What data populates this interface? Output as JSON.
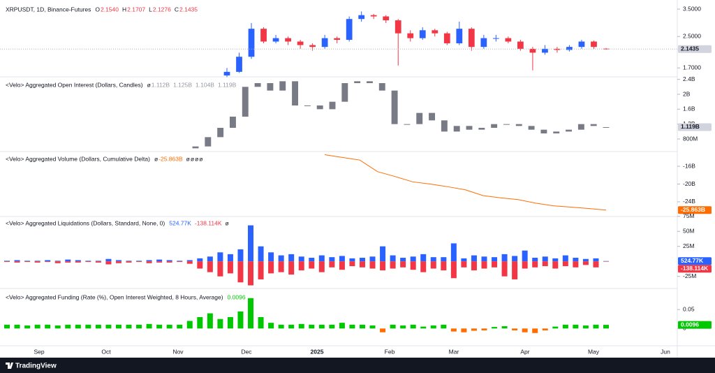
{
  "branding": "TradingView",
  "x_axis": {
    "labels": [
      "Sep",
      "Oct",
      "Nov",
      "Dec",
      "2025",
      "Feb",
      "Mar",
      "Apr",
      "May",
      "Jun"
    ]
  },
  "chart_data": [
    {
      "type": "candlestick",
      "legend": {
        "title": "XRPUSDT, 1D, Binance-Futures",
        "items": [
          {
            "text": "O",
            "color": "#131722"
          },
          {
            "text": "2.1540",
            "color": "#f23645"
          },
          {
            "text": "H",
            "color": "#131722"
          },
          {
            "text": "2.1707",
            "color": "#f23645"
          },
          {
            "text": "L",
            "color": "#131722"
          },
          {
            "text": "2.1276",
            "color": "#f23645"
          },
          {
            "text": "C",
            "color": "#131722"
          },
          {
            "text": "2.1435",
            "color": "#f23645"
          }
        ]
      },
      "open": [
        1.55,
        1.62,
        1.95,
        2.75,
        2.35,
        2.45,
        2.35,
        2.25,
        2.2,
        2.45,
        2.4,
        3.1,
        3.25,
        3.2,
        3.05,
        2.6,
        2.45,
        2.7,
        2.6,
        2.3,
        2.75,
        2.2,
        2.45,
        2.45,
        2.35,
        2.15,
        2.05,
        2.15,
        2.12,
        2.2,
        2.35,
        2.154
      ],
      "high": [
        1.7,
        2.05,
        2.95,
        2.8,
        2.55,
        2.5,
        2.4,
        2.3,
        2.55,
        2.5,
        3.2,
        3.4,
        3.3,
        3.25,
        3.1,
        2.7,
        2.8,
        2.75,
        2.65,
        3.0,
        2.8,
        2.55,
        2.55,
        2.5,
        2.4,
        2.2,
        2.25,
        2.2,
        2.25,
        2.4,
        2.38,
        2.1707
      ],
      "low": [
        1.52,
        1.6,
        1.9,
        2.3,
        2.3,
        2.25,
        2.15,
        2.1,
        2.15,
        2.3,
        2.35,
        3.0,
        3.1,
        2.95,
        1.75,
        2.35,
        2.4,
        2.5,
        2.25,
        2.25,
        2.1,
        2.15,
        2.35,
        2.3,
        2.1,
        1.65,
        2.0,
        2.05,
        2.08,
        2.15,
        2.15,
        2.1276
      ],
      "close": [
        1.62,
        1.95,
        2.75,
        2.35,
        2.45,
        2.35,
        2.25,
        2.2,
        2.45,
        2.4,
        3.1,
        3.25,
        3.2,
        3.05,
        2.6,
        2.45,
        2.7,
        2.6,
        2.3,
        2.75,
        2.2,
        2.45,
        2.45,
        2.35,
        2.15,
        2.05,
        2.15,
        2.12,
        2.2,
        2.35,
        2.2,
        2.1435
      ],
      "up_color": "#2962ff",
      "down_color": "#f23645",
      "log_scale": true,
      "ylim": [
        1.55,
        3.75
      ],
      "yticks": [
        {
          "value": 3.5,
          "label": "3.5000"
        },
        {
          "value": 2.5,
          "label": "2.5000"
        },
        {
          "value": 1.7,
          "label": "1.7000"
        }
      ],
      "last_labels": [
        {
          "text": "2.1435",
          "bg": "#d1d4dc",
          "fg": "#131722"
        }
      ]
    },
    {
      "type": "candlestick",
      "legend": {
        "title": "<Velo> Aggregated Open Interest (Dollars, Candles)",
        "items": [
          {
            "text": "ø",
            "color": "#131722"
          },
          {
            "text": "1.112B",
            "color": "#9598a1"
          },
          {
            "text": "1.125B",
            "color": "#9598a1"
          },
          {
            "text": "1.104B",
            "color": "#9598a1"
          },
          {
            "text": "1.119B",
            "color": "#9598a1"
          }
        ]
      },
      "open": [
        0.55,
        0.6,
        0.85,
        1.1,
        1.4,
        2.2,
        2.3,
        2.1,
        2.35,
        1.7,
        1.7,
        1.6,
        1.8,
        2.3,
        2.35,
        2.3,
        2.1,
        1.2,
        1.2,
        1.5,
        1.3,
        1.0,
        1.15,
        1.05,
        1.1,
        1.2,
        1.2,
        1.15,
        1.05,
        0.95,
        1.0,
        1.05,
        1.2,
        1.112
      ],
      "close": [
        0.6,
        0.85,
        1.1,
        1.4,
        2.2,
        2.3,
        2.1,
        2.35,
        1.7,
        1.7,
        1.6,
        1.8,
        2.3,
        2.35,
        2.3,
        2.1,
        1.2,
        1.2,
        1.5,
        1.3,
        1.0,
        1.15,
        1.05,
        1.1,
        1.2,
        1.2,
        1.15,
        1.05,
        0.95,
        1.0,
        1.05,
        1.2,
        1.15,
        1.119
      ],
      "color": "#787b86",
      "ylim": [
        0.5,
        2.45
      ],
      "yticks": [
        {
          "value": 2.4,
          "label": "2.4B"
        },
        {
          "value": 2,
          "label": "2B"
        },
        {
          "value": 1.6,
          "label": "1.6B"
        },
        {
          "value": 1.2,
          "label": "1.2B"
        },
        {
          "value": 0.8,
          "label": "800M"
        }
      ],
      "last_labels": [
        {
          "text": "1.119B",
          "bg": "#d1d4dc",
          "fg": "#131722"
        }
      ]
    },
    {
      "type": "line",
      "legend": {
        "title": "<Velo> Aggregated Volume (Dollars, Cumulative Delta)",
        "items": [
          {
            "text": "ø",
            "color": "#131722"
          },
          {
            "text": "-25.863B",
            "color": "#ff6d00"
          },
          {
            "text": "ø",
            "color": "#131722"
          },
          {
            "text": "ø",
            "color": "#131722"
          },
          {
            "text": "ø",
            "color": "#131722"
          },
          {
            "text": "ø",
            "color": "#131722"
          }
        ]
      },
      "values": [
        -13.4,
        -14.0,
        -14.6,
        -17.2,
        -18.3,
        -19.5,
        -20.0,
        -20.6,
        -21.3,
        -22.6,
        -23.1,
        -23.5,
        -24.3,
        -24.9,
        -25.2,
        -25.5,
        -25.863
      ],
      "color": "#ff6d00",
      "ylim": [
        -27,
        -13
      ],
      "yticks": [
        {
          "value": -16,
          "label": "-16B"
        },
        {
          "value": -20,
          "label": "-20B"
        },
        {
          "value": -24,
          "label": "-24B"
        }
      ],
      "last_labels": [
        {
          "text": "-25.863B",
          "bg": "#ff6d00",
          "fg": "#ffffff"
        }
      ]
    },
    {
      "type": "bar",
      "legend": {
        "title": "<Velo> Aggregated Liquidations (Dollars, Standard, None, 0)",
        "items": [
          {
            "text": "524.77K",
            "color": "#2962ff"
          },
          {
            "text": "-138.114K",
            "color": "#f23645"
          },
          {
            "text": "ø",
            "color": "#131722"
          }
        ]
      },
      "series": [
        {
          "color": "#2962ff",
          "values": [
            1,
            2,
            1,
            1,
            2,
            1,
            3,
            2,
            1,
            1,
            4,
            2,
            1,
            1,
            2,
            3,
            2,
            1,
            2,
            5,
            8,
            15,
            12,
            20,
            60,
            25,
            15,
            10,
            12,
            8,
            6,
            10,
            7,
            9,
            5,
            6,
            8,
            25,
            10,
            6,
            8,
            12,
            7,
            7,
            30,
            5,
            10,
            8,
            7,
            12,
            9,
            18,
            6,
            8,
            5,
            10,
            6,
            4,
            5,
            0.52477
          ]
        },
        {
          "color": "#f23645",
          "values": [
            -1,
            -2,
            -1,
            -2,
            -1,
            -3,
            -2,
            -2,
            -1,
            -2,
            -5,
            -3,
            -2,
            -1,
            -3,
            -2,
            -2,
            -1,
            -4,
            -12,
            -18,
            -25,
            -20,
            -35,
            -40,
            -30,
            -20,
            -18,
            -22,
            -15,
            -12,
            -18,
            -10,
            -14,
            -8,
            -10,
            -12,
            -15,
            -12,
            -10,
            -14,
            -18,
            -12,
            -15,
            -28,
            -10,
            -15,
            -12,
            -10,
            -25,
            -30,
            -12,
            -10,
            -8,
            -12,
            -8,
            -10,
            -6,
            -10,
            -0.138114
          ]
        }
      ],
      "ylim": [
        -44,
        77
      ],
      "yticks": [
        {
          "value": 75,
          "label": "75M"
        },
        {
          "value": 50,
          "label": "50M"
        },
        {
          "value": 25,
          "label": "25M"
        },
        {
          "value": -25,
          "label": "-25M"
        }
      ],
      "last_labels": [
        {
          "text": "524.77K",
          "bg": "#2962ff",
          "fg": "#ffffff"
        },
        {
          "text": "-138.114K",
          "bg": "#f23645",
          "fg": "#ffffff"
        }
      ]
    },
    {
      "type": "bar",
      "legend": {
        "title": "<Velo> Aggregated Funding (Rate (%), Open Interest Weighted, 8 Hours, Average)",
        "items": [
          {
            "text": "0.0096",
            "color": "#00c800"
          }
        ]
      },
      "values": [
        0.01,
        0.01,
        0.008,
        0.01,
        0.01,
        0.008,
        0.01,
        0.01,
        0.01,
        0.01,
        0.01,
        0.01,
        0.01,
        0.01,
        0.012,
        0.01,
        0.01,
        0.01,
        0.02,
        0.03,
        0.04,
        0.025,
        0.03,
        0.045,
        0.08,
        0.03,
        0.015,
        0.01,
        0.01,
        0.012,
        0.01,
        0.01,
        0.01,
        0.015,
        0.01,
        0.01,
        0.008,
        -0.01,
        0.01,
        0.008,
        0.01,
        0.005,
        0.008,
        0.01,
        -0.008,
        -0.01,
        -0.006,
        -0.005,
        0.004,
        0.006,
        -0.005,
        -0.01,
        -0.012,
        -0.005,
        0.005,
        0.01,
        0.01,
        0.008,
        0.01,
        0.0096
      ],
      "positive_color": "#00c800",
      "negative_color": "#ff6d00",
      "ylim": [
        -0.04,
        0.1
      ],
      "yticks": [
        0.05,
        0
      ],
      "last_labels": [
        {
          "text": "0.0096",
          "bg": "#00c800",
          "fg": "#ffffff"
        }
      ]
    }
  ]
}
